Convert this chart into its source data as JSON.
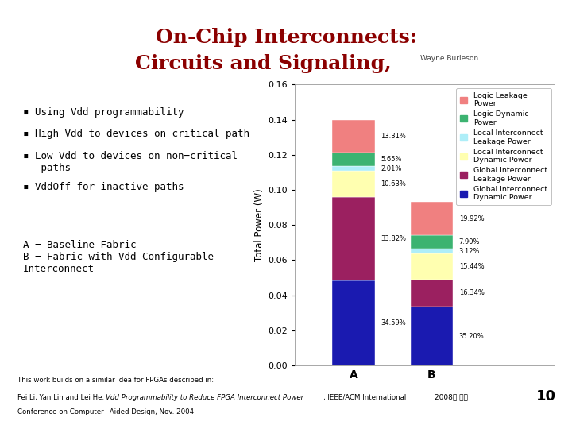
{
  "title_line1": "On-Chip Interconnects:",
  "title_line2": "Circuits and Signaling,",
  "title_author": "Wayne Burleson",
  "title_color": "#8B0000",
  "categories": [
    "A",
    "B"
  ],
  "total_A": 0.14,
  "total_B": 0.095,
  "segments": [
    {
      "label": "Logic Leakage\nPower",
      "color": "#F08080",
      "pct_A": 13.31,
      "pct_B": 19.92
    },
    {
      "label": "Logic Dynamic\nPower",
      "color": "#3CB371",
      "pct_A": 5.65,
      "pct_B": 7.9
    },
    {
      "label": "Local Interconnect\nLeakage Power",
      "color": "#AEEEF8",
      "pct_A": 2.01,
      "pct_B": 3.12
    },
    {
      "label": "Local Interconnect\nDynamic Power",
      "color": "#FFFFB0",
      "pct_A": 10.63,
      "pct_B": 15.44
    },
    {
      "label": "Global Interconnect\nLeakage Power",
      "color": "#9B2060",
      "pct_A": 33.82,
      "pct_B": 16.34
    },
    {
      "label": "Global Interconnect\nDynamic Power",
      "color": "#1A1AB0",
      "pct_A": 34.59,
      "pct_B": 35.2
    }
  ],
  "ylabel": "Total Power (W)",
  "ylim": [
    0,
    0.16
  ],
  "yticks": [
    0,
    0.02,
    0.04,
    0.06,
    0.08,
    0.1,
    0.12,
    0.14,
    0.16
  ],
  "bullet_points": [
    "▪ Using Vdd programmability",
    "▪ High Vdd to devices on critical path",
    "▪ Low Vdd to devices on non−critical\n   paths",
    "▪ VddOff for inactive paths"
  ],
  "note_text": "A − Baseline Fabric\nB − Fabric with Vdd Configurable\nInterconnect",
  "footer_text1": "This work builds on a similar idea for FPGAs described in:",
  "footer_pre": "Fei Li, Yan Lin and Lei He. ",
  "footer_italic": "Vdd Programmability to Reduce FPGA Interconnect Power",
  "footer_post": ", IEEE/ACM International",
  "footer_line3": "Conference on Computer−Aided Design, Nov. 2004.",
  "slide_number": "10",
  "korean_text": "2008년 가을",
  "bg_color": "#FFFFFF",
  "bar_color_border": "#8B3A10",
  "title_rule_color": "#8B3A10",
  "footer_rule_color": "#8B3A10"
}
